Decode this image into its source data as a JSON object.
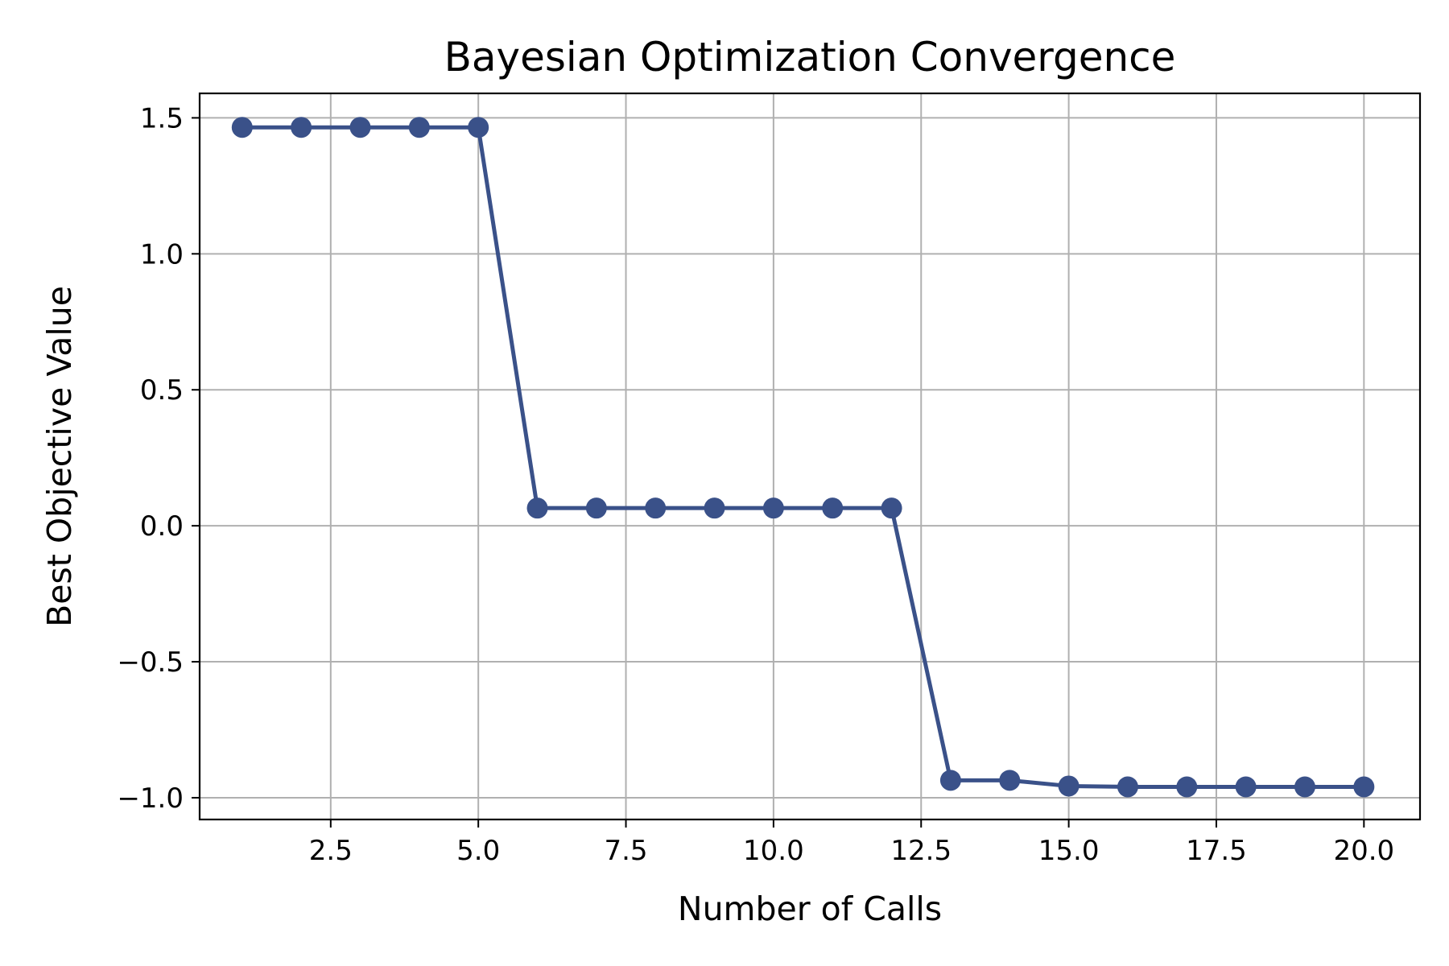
{
  "chart_data": {
    "type": "line",
    "title": "Bayesian Optimization Convergence",
    "xlabel": "Number of Calls",
    "ylabel": "Best Objective Value",
    "xlim": [
      0.28,
      20.95
    ],
    "ylim": [
      -1.08,
      1.59
    ],
    "xticks": [
      2.5,
      5.0,
      7.5,
      10.0,
      12.5,
      15.0,
      17.5,
      20.0
    ],
    "xtick_labels": [
      "2.5",
      "5.0",
      "7.5",
      "10.0",
      "12.5",
      "15.0",
      "17.5",
      "20.0"
    ],
    "yticks": [
      -1.0,
      -0.5,
      0.0,
      0.5,
      1.0,
      1.5
    ],
    "ytick_labels": [
      "−1.0",
      "−0.5",
      "0.0",
      "0.5",
      "1.0",
      "1.5"
    ],
    "grid": true,
    "series": [
      {
        "color": "#3a5189",
        "marker": "circle",
        "x": [
          1,
          2,
          3,
          4,
          5,
          6,
          7,
          8,
          9,
          10,
          11,
          12,
          13,
          14,
          15,
          16,
          17,
          18,
          19,
          20
        ],
        "y": [
          1.465,
          1.465,
          1.465,
          1.465,
          1.465,
          0.065,
          0.065,
          0.065,
          0.065,
          0.065,
          0.065,
          0.065,
          -0.936,
          -0.936,
          -0.957,
          -0.96,
          -0.96,
          -0.96,
          -0.96,
          -0.96
        ]
      }
    ]
  }
}
